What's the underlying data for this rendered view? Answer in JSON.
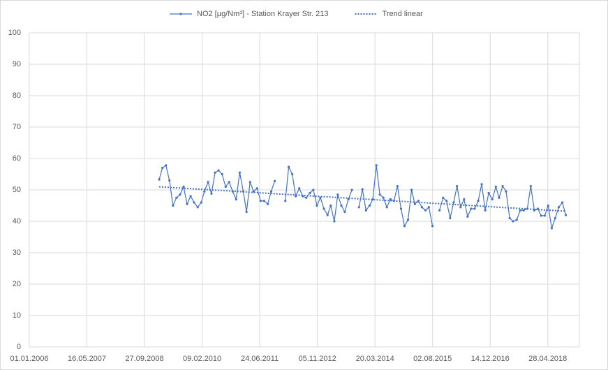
{
  "chart_data": {
    "type": "line",
    "xlim": [
      "2006-01-01",
      "2019-01-27"
    ],
    "xticks": [
      {
        "value": "2006-01-01",
        "label": "01.01.2006"
      },
      {
        "value": "2007-05-16",
        "label": "16.05.2007"
      },
      {
        "value": "2008-09-27",
        "label": "27.09.2008"
      },
      {
        "value": "2010-02-09",
        "label": "09.02.2010"
      },
      {
        "value": "2011-06-24",
        "label": "24.06.2011"
      },
      {
        "value": "2012-11-05",
        "label": "05.11.2012"
      },
      {
        "value": "2014-03-20",
        "label": "20.03.2014"
      },
      {
        "value": "2015-08-02",
        "label": "02.08.2015"
      },
      {
        "value": "2016-12-14",
        "label": "14.12.2016"
      },
      {
        "value": "2018-04-28",
        "label": "28.04.2018"
      }
    ],
    "ylim": [
      0,
      100
    ],
    "yticks": [
      0,
      10,
      20,
      30,
      40,
      50,
      60,
      70,
      80,
      90,
      100
    ],
    "grid": true,
    "legend": "top",
    "x": [
      "2009-02",
      "2009-03",
      "2009-04",
      "2009-05",
      "2009-06",
      "2009-07",
      "2009-08",
      "2009-09",
      "2009-10",
      "2009-11",
      "2009-12",
      "2010-01",
      "2010-02",
      "2010-03",
      "2010-04",
      "2010-05",
      "2010-06",
      "2010-07",
      "2010-08",
      "2010-09",
      "2010-10",
      "2010-11",
      "2010-12",
      "2011-01",
      "2011-02",
      "2011-03",
      "2011-04",
      "2011-05",
      "2011-06",
      "2011-07",
      "2011-08",
      "2011-09",
      "2011-10",
      "2011-11",
      "2011-12",
      "2012-01",
      "2012-02",
      "2012-03",
      "2012-04",
      "2012-05",
      "2012-06",
      "2012-07",
      "2012-08",
      "2012-09",
      "2012-10",
      "2012-11",
      "2012-12",
      "2013-01",
      "2013-02",
      "2013-03",
      "2013-04",
      "2013-05",
      "2013-06",
      "2013-07",
      "2013-08",
      "2013-09",
      "2013-10",
      "2013-11",
      "2013-12",
      "2014-01",
      "2014-02",
      "2014-03",
      "2014-04",
      "2014-05",
      "2014-06",
      "2014-07",
      "2014-08",
      "2014-09",
      "2014-10",
      "2014-11",
      "2014-12",
      "2015-01",
      "2015-02",
      "2015-03",
      "2015-04",
      "2015-05",
      "2015-06",
      "2015-07",
      "2015-08",
      "2015-09",
      "2015-10",
      "2015-11",
      "2015-12",
      "2016-01",
      "2016-02",
      "2016-03",
      "2016-04",
      "2016-05",
      "2016-06",
      "2016-07",
      "2016-08",
      "2016-09",
      "2016-10",
      "2016-11",
      "2016-12",
      "2017-01",
      "2017-02",
      "2017-03",
      "2017-04",
      "2017-05",
      "2017-06",
      "2017-07",
      "2017-08",
      "2017-09",
      "2017-10",
      "2017-11",
      "2017-12",
      "2018-01",
      "2018-02",
      "2018-03",
      "2018-04",
      "2018-05",
      "2018-06",
      "2018-07",
      "2018-08",
      "2018-09",
      "2018-10"
    ],
    "series": [
      {
        "name": "NO2 [µg/Nm³] - Station Krayer Str. 213",
        "color": "#4472c4",
        "style": "solid",
        "marker": true,
        "values": [
          53.3,
          57,
          57.8,
          53,
          45,
          47.5,
          48.5,
          51,
          45.5,
          48,
          46,
          44.5,
          46,
          49.5,
          52.5,
          48.8,
          55.5,
          56.2,
          55,
          51,
          52.5,
          49.5,
          47,
          55.5,
          49.5,
          43,
          52.5,
          49.5,
          50.5,
          46.5,
          46.5,
          45.5,
          49.5,
          52.8,
          null,
          null,
          46.5,
          57.3,
          55,
          48,
          50.5,
          48,
          47.5,
          49,
          50,
          45,
          47.5,
          44,
          42,
          45,
          40,
          48.5,
          45,
          43,
          47,
          50,
          null,
          44.5,
          50.2,
          43.5,
          45,
          47,
          57.8,
          48.5,
          47.5,
          44.5,
          47,
          46.5,
          51.2,
          44,
          38.5,
          40.5,
          50,
          45.5,
          46.5,
          44.5,
          43.5,
          44.5,
          38.5,
          null,
          43.5,
          47.5,
          46.5,
          41,
          46,
          51.2,
          44.5,
          47,
          41.5,
          44,
          44,
          46.5,
          51.8,
          43.5,
          49,
          47,
          51,
          47.5,
          51.2,
          49.5,
          41,
          40,
          40.5,
          43.5,
          43.5,
          44,
          51.2,
          43.5,
          44,
          41.8,
          41.8,
          45,
          37.8,
          41,
          44.5,
          46,
          42
        ]
      },
      {
        "name": "Trend linear",
        "color": "#4472c4",
        "style": "dotted",
        "marker": false,
        "x": [
          "2009-02",
          "2018-10"
        ],
        "values": [
          51,
          43.2
        ]
      }
    ]
  }
}
